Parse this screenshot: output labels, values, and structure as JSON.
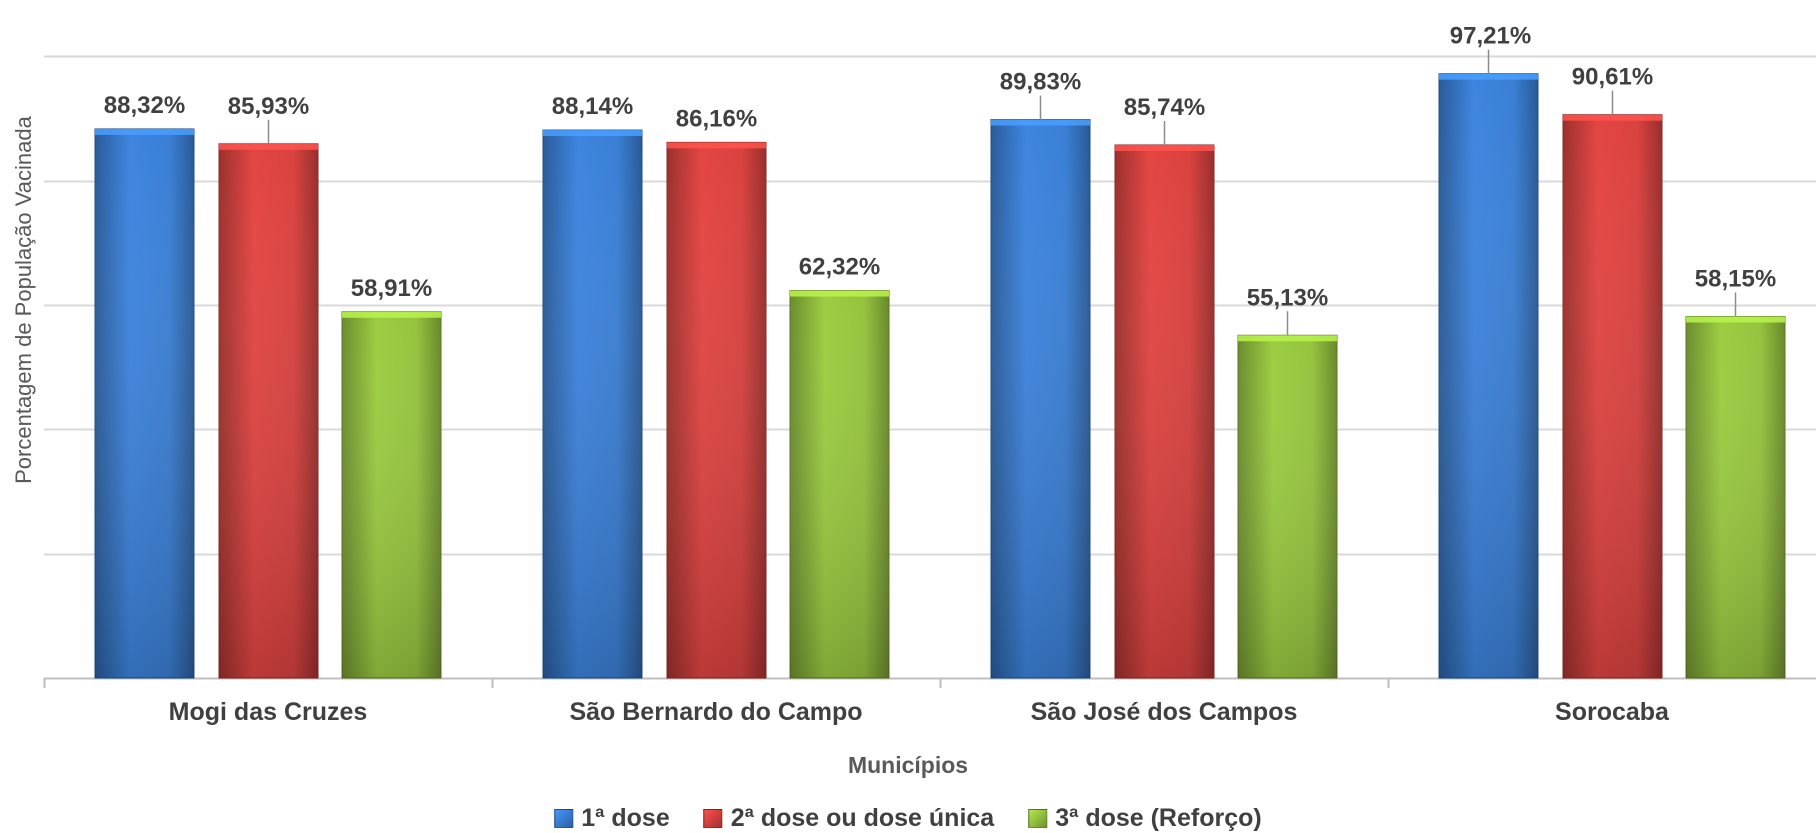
{
  "chart_data": {
    "type": "bar",
    "title": "",
    "xlabel": "Municípios",
    "ylabel": "Porcentagem de População Vacinada",
    "ylim": [
      0,
      100
    ],
    "grid": true,
    "legend_position": "bottom",
    "categories": [
      "Mogi das Cruzes",
      "São Bernardo do Campo",
      "São José dos Campos",
      "Sorocaba"
    ],
    "series": [
      {
        "name": "1ª dose",
        "color": "#3A7FD5",
        "values": [
          88.32,
          88.14,
          89.83,
          97.21
        ],
        "labels": [
          "88,32%",
          "88,14%",
          "89,83%",
          "97,21%"
        ]
      },
      {
        "name": "2ª dose ou dose única",
        "color": "#D9423F",
        "values": [
          85.93,
          86.16,
          85.74,
          90.61
        ],
        "labels": [
          "85,93%",
          "86,16%",
          "85,74%",
          "90,61%"
        ]
      },
      {
        "name": "3ª dose (Reforço)",
        "color": "#95C33E",
        "values": [
          58.91,
          62.32,
          55.13,
          58.15
        ],
        "labels": [
          "58,91%",
          "62,32%",
          "55,13%",
          "58,15%"
        ]
      }
    ]
  }
}
